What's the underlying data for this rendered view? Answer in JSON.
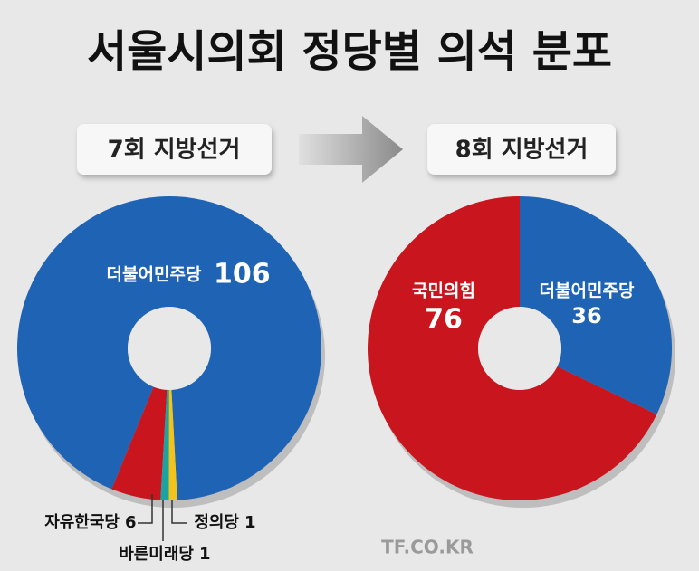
{
  "title": "서울시의회 정당별 의석 분포",
  "watermark": "TF.CO.KR",
  "chart_data": [
    {
      "type": "pie",
      "donut": true,
      "title": "7회 지방선거",
      "categories": [
        "더불어민주당",
        "자유한국당",
        "바른미래당",
        "정의당"
      ],
      "values": [
        106,
        6,
        1,
        1
      ],
      "colors": [
        "#1f63b5",
        "#c8151e",
        "#1aa3a0",
        "#f2c31a"
      ]
    },
    {
      "type": "pie",
      "donut": true,
      "title": "8회 지방선거",
      "categories": [
        "국민의힘",
        "더불어민주당"
      ],
      "values": [
        76,
        36
      ],
      "colors": [
        "#c8151e",
        "#1f63b5"
      ]
    }
  ]
}
